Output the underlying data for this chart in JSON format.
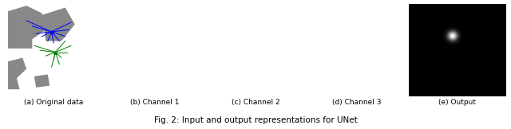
{
  "fig_width": 6.4,
  "fig_height": 1.62,
  "dpi": 100,
  "caption": "Fig. 2: Input and output representations for UNet",
  "caption_fontsize": 7.5,
  "subfig_labels": [
    "(a) Original data",
    "(b) Channel 1",
    "(c) Channel 2",
    "(d) Channel 3",
    "(e) Output"
  ],
  "subfig_label_fontsize": 6.5,
  "background_color": "#ffffff"
}
